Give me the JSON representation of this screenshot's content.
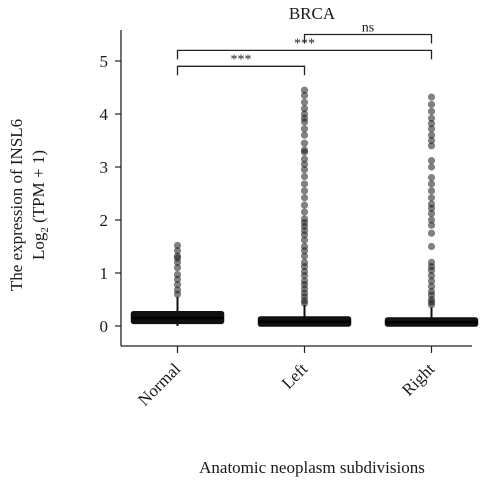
{
  "chart_data": {
    "type": "box",
    "title": "BRCA",
    "xlabel": "Anatomic neoplasm subdivisions",
    "ylabel_line1": "The expression of INSL6",
    "ylabel_line2_prefix": "Log",
    "ylabel_line2_sub": "2",
    "ylabel_line2_suffix": " (TPM + 1)",
    "ylim": [
      -0.4,
      5.5
    ],
    "yticks": [
      0,
      1,
      2,
      3,
      4,
      5
    ],
    "categories": [
      "Normal",
      "Left",
      "Right"
    ],
    "boxes": [
      {
        "name": "Normal",
        "q1": 0.05,
        "median": 0.15,
        "q3": 0.27,
        "whisker_low": 0.0,
        "whisker_high": 0.55,
        "outliers": [
          0.6,
          0.68,
          0.78,
          0.88,
          0.97,
          1.1,
          1.2,
          1.28,
          1.32,
          1.42,
          1.52
        ]
      },
      {
        "name": "Left",
        "q1": 0.0,
        "median": 0.08,
        "q3": 0.17,
        "whisker_low": 0.0,
        "whisker_high": 0.4,
        "outliers": [
          0.43,
          0.48,
          0.55,
          0.62,
          0.7,
          0.78,
          0.85,
          0.95,
          1.03,
          1.12,
          1.2,
          1.32,
          1.42,
          1.5,
          1.62,
          1.72,
          1.8,
          1.88,
          1.95,
          2.02,
          2.15,
          2.28,
          2.42,
          2.55,
          2.68,
          2.82,
          2.95,
          3.05,
          3.15,
          3.28,
          3.32,
          3.45,
          3.6,
          3.72,
          3.85,
          3.92,
          4.0,
          4.1,
          4.22,
          4.35,
          4.45
        ]
      },
      {
        "name": "Right",
        "q1": 0.0,
        "median": 0.07,
        "q3": 0.15,
        "whisker_low": 0.0,
        "whisker_high": 0.35,
        "outliers": [
          0.4,
          0.45,
          0.5,
          0.58,
          0.65,
          0.75,
          0.85,
          0.95,
          1.05,
          1.12,
          1.2,
          1.5,
          1.75,
          1.9,
          2.0,
          2.12,
          2.22,
          2.3,
          2.42,
          2.55,
          2.68,
          2.8,
          3.0,
          3.12,
          3.4,
          3.5,
          3.6,
          3.72,
          3.82,
          3.92,
          4.05,
          4.18,
          4.32
        ]
      }
    ],
    "significance": [
      {
        "from": "Normal",
        "to": "Left",
        "label": "***",
        "level": 4.9
      },
      {
        "from": "Normal",
        "to": "Right",
        "label": "***",
        "level": 5.2
      },
      {
        "from": "Left",
        "to": "Right",
        "label": "ns",
        "level": 5.5
      }
    ]
  }
}
